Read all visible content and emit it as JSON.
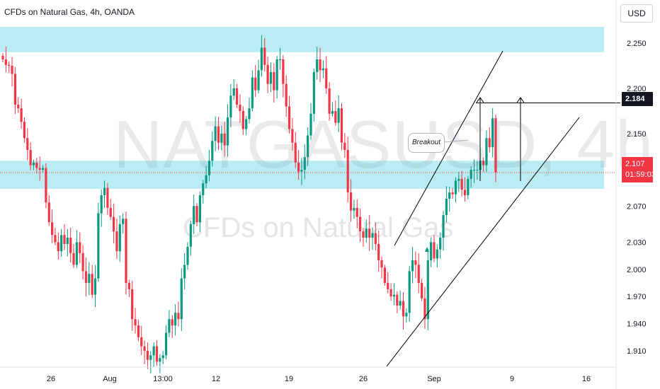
{
  "header": {
    "title": "CFDs on Natural Gas, 4h, OANDA",
    "currency": "USD"
  },
  "watermark": {
    "symbol": "NATGASUSD, 4h",
    "description": "CFDs on Natural Gas"
  },
  "price_badges": {
    "high": "2.184",
    "last": "2.107",
    "countdown": "01:59:03"
  },
  "annotation": {
    "callout": "Breakout"
  },
  "colors": {
    "up": "#089981",
    "down": "#f23645",
    "zone": "#b2ebf2",
    "text": "#131722",
    "line": "#000000"
  },
  "chart_data": {
    "type": "candlestick",
    "title": "CFDs on Natural Gas, 4h, OANDA",
    "y_ticks": [
      "2.250",
      "2.200",
      "2.150",
      "2.107",
      "2.070",
      "2.030",
      "2.000",
      "1.970",
      "1.940",
      "1.910"
    ],
    "ylim": [
      1.895,
      2.265
    ],
    "x_ticks": [
      "26",
      "Aug",
      "13:00",
      "12",
      "19",
      "26",
      "Sep",
      "9",
      "16"
    ],
    "zones": [
      [
        2.24,
        2.268
      ],
      [
        2.089,
        2.12
      ]
    ],
    "levels": [
      2.184,
      2.107
    ],
    "closes": [
      2.232,
      2.226,
      2.225,
      2.216,
      2.182,
      2.178,
      2.163,
      2.145,
      2.132,
      2.115,
      2.118,
      2.112,
      2.11,
      2.112,
      2.074,
      2.052,
      2.038,
      2.03,
      2.02,
      2.038,
      2.028,
      2.035,
      2.018,
      2.005,
      2.03,
      2.018,
      1.998,
      1.985,
      1.995,
      1.972,
      1.99,
      2.062,
      2.082,
      2.09,
      2.068,
      2.058,
      2.042,
      2.02,
      2.05,
      2.056,
      1.985,
      1.978,
      1.945,
      1.938,
      1.925,
      1.915,
      1.91,
      1.9,
      1.905,
      1.915,
      1.898,
      1.902,
      1.905,
      1.93,
      1.945,
      1.938,
      1.952,
      1.945,
      1.99,
      2.005,
      2.025,
      2.05,
      2.07,
      2.052,
      2.082,
      2.095,
      2.104,
      2.12,
      2.142,
      2.158,
      2.14,
      2.15,
      2.137,
      2.168,
      2.192,
      2.2,
      2.182,
      2.175,
      2.155,
      2.166,
      2.178,
      2.212,
      2.198,
      2.22,
      2.245,
      2.226,
      2.205,
      2.218,
      2.198,
      2.232,
      2.232,
      2.205,
      2.18,
      2.155,
      2.14,
      2.118,
      2.108,
      2.11,
      2.124,
      2.148,
      2.172,
      2.218,
      2.232,
      2.22,
      2.222,
      2.2,
      2.172,
      2.175,
      2.162,
      2.178,
      2.14,
      2.132,
      2.085,
      2.065,
      2.068,
      2.058,
      2.042,
      2.035,
      2.045,
      2.035,
      2.04,
      2.028,
      2.01,
      2.002,
      1.985,
      1.978,
      1.97,
      1.972,
      1.96,
      1.965,
      1.948,
      1.952,
      1.998,
      2.01,
      2.005,
      1.985,
      1.968,
      1.945,
      2.01,
      2.03,
      2.012,
      2.022,
      2.035,
      2.06,
      2.078,
      2.085,
      2.083,
      2.098,
      2.1,
      2.088,
      2.082,
      2.1,
      2.11,
      2.11,
      2.11,
      2.12,
      2.115,
      2.145,
      2.135,
      2.167,
      2.107
    ]
  }
}
